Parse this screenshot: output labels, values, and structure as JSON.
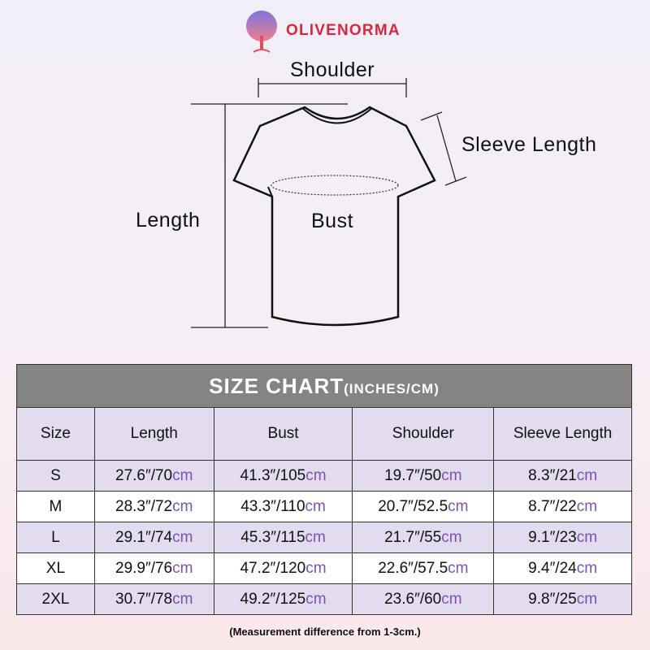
{
  "brand": {
    "name": "OLIVENORMA",
    "color": "#d8283e"
  },
  "diagram": {
    "shoulder": "Shoulder",
    "sleeve_length": "Sleeve Length",
    "length": "Length",
    "bust": "Bust"
  },
  "table": {
    "title": "SIZE CHART",
    "title_units": "(INCHES/CM)",
    "header_color": "#858383",
    "alt_row_color": "#e3dbee",
    "unit_color": "#7b52b4",
    "columns": [
      "Size",
      "Length",
      "Bust",
      "Shoulder",
      "Sleeve Length"
    ],
    "rows": [
      {
        "size": "S",
        "length": "27.6″/70",
        "bust": "41.3″/105",
        "shoulder": "19.7″/50",
        "sleeve": "8.3″/21",
        "unit": "cm"
      },
      {
        "size": "M",
        "length": "28.3″/72",
        "bust": "43.3″/110",
        "shoulder": "20.7″/52.5",
        "sleeve": "8.7″/22",
        "unit": "cm"
      },
      {
        "size": "L",
        "length": "29.1″/74",
        "bust": "45.3″/115",
        "shoulder": "21.7″/55",
        "sleeve": "9.1″/23",
        "unit": "cm"
      },
      {
        "size": "XL",
        "length": "29.9″/76",
        "bust": "47.2″/120",
        "shoulder": "22.6″/57.5",
        "sleeve": "9.4″/24",
        "unit": "cm"
      },
      {
        "size": "2XL",
        "length": "30.7″/78",
        "bust": "49.2″/125",
        "shoulder": "23.6″/60",
        "sleeve": "9.8″/25",
        "unit": "cm"
      }
    ]
  },
  "note": "(Measurement difference from 1-3cm.)"
}
